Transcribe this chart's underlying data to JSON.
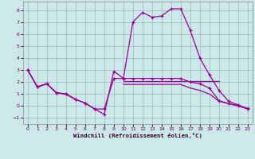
{
  "xlabel": "Windchill (Refroidissement éolien,°C)",
  "bg_color": "#cce8e8",
  "line_color": "#990099",
  "grid_color": "#99bbbb",
  "xlim": [
    -0.5,
    23.5
  ],
  "ylim": [
    -1.5,
    8.7
  ],
  "yticks": [
    -1,
    0,
    1,
    2,
    3,
    4,
    5,
    6,
    7,
    8
  ],
  "xticks": [
    0,
    1,
    2,
    3,
    4,
    5,
    6,
    7,
    8,
    9,
    10,
    11,
    12,
    13,
    14,
    15,
    16,
    17,
    18,
    19,
    20,
    21,
    22,
    23
  ],
  "series": [
    {
      "x": [
        0,
        1,
        2,
        3,
        4,
        5,
        6,
        7,
        8,
        9,
        10,
        11,
        12,
        13,
        14,
        15,
        16,
        17,
        18,
        19,
        20,
        21,
        22,
        23
      ],
      "y": [
        3.0,
        1.6,
        1.85,
        1.1,
        1.0,
        0.55,
        0.25,
        -0.25,
        -0.7,
        2.9,
        2.3,
        7.0,
        7.8,
        7.4,
        7.5,
        8.1,
        8.1,
        6.3,
        4.0,
        2.6,
        1.3,
        0.4,
        0.1,
        -0.25
      ],
      "marker": true
    },
    {
      "x": [
        0,
        1,
        2,
        3,
        4,
        5,
        6,
        7,
        8,
        9,
        10,
        11,
        12,
        13,
        14,
        15,
        16,
        17,
        18,
        19,
        20,
        21,
        22,
        23
      ],
      "y": [
        3.0,
        1.6,
        1.85,
        1.1,
        1.0,
        0.55,
        0.25,
        -0.25,
        -0.25,
        2.3,
        2.3,
        2.3,
        2.3,
        2.3,
        2.3,
        2.3,
        2.3,
        2.0,
        1.85,
        1.5,
        0.45,
        0.2,
        0.05,
        -0.2
      ],
      "marker": true
    },
    {
      "x": [
        0,
        1,
        2,
        3,
        4,
        5,
        6,
        7,
        8,
        9,
        10,
        11,
        12,
        13,
        14,
        15,
        16,
        17,
        18,
        19,
        20,
        21,
        22,
        23
      ],
      "y": [
        3.0,
        1.6,
        1.85,
        1.1,
        1.0,
        0.55,
        null,
        null,
        null,
        null,
        2.1,
        2.1,
        2.1,
        2.1,
        2.1,
        2.1,
        2.1,
        2.1,
        2.1,
        2.1,
        2.1,
        null,
        null,
        null
      ],
      "marker": false
    },
    {
      "x": [
        10,
        11,
        12,
        13,
        14,
        15,
        16,
        17,
        18,
        19,
        20,
        21,
        22,
        23
      ],
      "y": [
        1.8,
        1.8,
        1.8,
        1.8,
        1.8,
        1.8,
        1.8,
        1.5,
        1.3,
        1.0,
        0.4,
        0.2,
        0.0,
        -0.25
      ],
      "marker": false
    }
  ]
}
